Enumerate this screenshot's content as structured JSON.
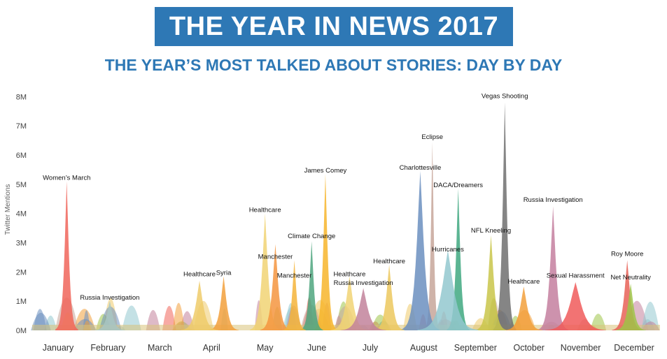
{
  "header": {
    "title": "THE YEAR IN NEWS 2017",
    "subtitle": "THE YEAR’S MOST TALKED ABOUT STORIES: DAY BY DAY"
  },
  "chart_data": {
    "type": "area",
    "title": "THE YEAR’S MOST TALKED ABOUT STORIES: DAY BY DAY",
    "ylabel": "Twitter Mentions",
    "xlabel": "",
    "ylim": [
      0,
      8000000
    ],
    "yticks": [
      {
        "value": 0,
        "label": "0M"
      },
      {
        "value": 1000000,
        "label": "1M"
      },
      {
        "value": 2000000,
        "label": "2M"
      },
      {
        "value": 3000000,
        "label": "3M"
      },
      {
        "value": 4000000,
        "label": "4M"
      },
      {
        "value": 5000000,
        "label": "5M"
      },
      {
        "value": 6000000,
        "label": "6M"
      },
      {
        "value": 7000000,
        "label": "7M"
      },
      {
        "value": 8000000,
        "label": "8M"
      }
    ],
    "x_domain": [
      "2017-01-01",
      "2017-12-31"
    ],
    "months": [
      {
        "label": "January",
        "date": "2017-01-16"
      },
      {
        "label": "February",
        "date": "2017-02-14"
      },
      {
        "label": "March",
        "date": "2017-03-16"
      },
      {
        "label": "April",
        "date": "2017-04-15"
      },
      {
        "label": "May",
        "date": "2017-05-16"
      },
      {
        "label": "June",
        "date": "2017-06-15"
      },
      {
        "label": "July",
        "date": "2017-07-16"
      },
      {
        "label": "August",
        "date": "2017-08-16"
      },
      {
        "label": "September",
        "date": "2017-09-15"
      },
      {
        "label": "October",
        "date": "2017-10-16"
      },
      {
        "label": "November",
        "date": "2017-11-15"
      },
      {
        "label": "December",
        "date": "2017-12-16"
      }
    ],
    "series": [
      {
        "label": "Women’s March",
        "date": "2017-01-21",
        "peak": 5100000,
        "width": 3,
        "color": "#f0655a",
        "label_y": 5150000
      },
      {
        "label": "Russia Investigation",
        "date": "2017-02-15",
        "peak": 1000000,
        "width": 4,
        "color": "#a8c5c3",
        "label_y": 1050000
      },
      {
        "label": "Healthcare",
        "date": "2017-04-08",
        "peak": 1700000,
        "width": 5,
        "color": "#eecb6a",
        "label_y": 1850000
      },
      {
        "label": "Syria",
        "date": "2017-04-22",
        "peak": 1850000,
        "width": 4,
        "color": "#f2a03c",
        "label_y": 1900000
      },
      {
        "label": "Healthcare",
        "date": "2017-05-16",
        "peak": 4000000,
        "width": 4,
        "color": "#f1d374",
        "label_y": 4050000
      },
      {
        "label": "Manchester",
        "date": "2017-06-02",
        "peak": 2400000,
        "width": 3,
        "color": "#f5b43a",
        "label_y": 1800000
      },
      {
        "label": "Manchester",
        "date": "2017-05-22",
        "peak": 2950000,
        "width": 4,
        "color": "#f59540",
        "label_y": 2450000
      },
      {
        "label": "Climate Change",
        "date": "2017-06-12",
        "peak": 3050000,
        "width": 3,
        "color": "#4fa67f",
        "label_y": 3150000
      },
      {
        "label": "James Comey",
        "date": "2017-06-20",
        "peak": 5350000,
        "width": 3,
        "color": "#f7b52c",
        "label_y": 5400000
      },
      {
        "label": "Healthcare",
        "date": "2017-07-04",
        "peak": 1850000,
        "width": 5,
        "color": "#f1d374",
        "label_y": 1850000
      },
      {
        "label": "Russia Investigation",
        "date": "2017-07-12",
        "peak": 1450000,
        "width": 6,
        "color": "#c2829b",
        "label_y": 1550000
      },
      {
        "label": "Healthcare",
        "date": "2017-07-27",
        "peak": 2250000,
        "width": 4,
        "color": "#ecc85e",
        "label_y": 2300000
      },
      {
        "label": "Charlottesville",
        "date": "2017-08-14",
        "peak": 5450000,
        "width": 5,
        "color": "#6b8fc0",
        "label_y": 5500000
      },
      {
        "label": "Eclipse",
        "date": "2017-08-21",
        "peak": 6450000,
        "width": 2,
        "color": "#c7a69a",
        "label_y": 6550000
      },
      {
        "label": "Hurricanes",
        "date": "2017-08-30",
        "peak": 2750000,
        "width": 8,
        "color": "#93c8cf",
        "label_y": 2700000
      },
      {
        "label": "DACA/Dreamers",
        "date": "2017-09-05",
        "peak": 4850000,
        "width": 3,
        "color": "#3fa880",
        "label_y": 4900000
      },
      {
        "label": "NFL Kneeling",
        "date": "2017-09-24",
        "peak": 3250000,
        "width": 4,
        "color": "#c9c64a",
        "label_y": 3350000
      },
      {
        "label": "Vegas Shooting",
        "date": "2017-10-02",
        "peak": 7800000,
        "width": 3,
        "color": "#707070",
        "label_y": 7950000
      },
      {
        "label": "Healthcare",
        "date": "2017-10-13",
        "peak": 1500000,
        "width": 5,
        "color": "#f2a03c",
        "label_y": 1600000
      },
      {
        "label": "Russia Investigation",
        "date": "2017-10-30",
        "peak": 4250000,
        "width": 4,
        "color": "#c47f9f",
        "label_y": 4400000
      },
      {
        "label": "Sexual Harassment",
        "date": "2017-11-12",
        "peak": 1650000,
        "width": 8,
        "color": "#f05a5a",
        "label_y": 1800000
      },
      {
        "label": "Net Neutrality",
        "date": "2017-12-14",
        "peak": 1600000,
        "width": 4,
        "color": "#9fc449",
        "label_y": 1750000
      },
      {
        "label": "Roy Moore",
        "date": "2017-12-12",
        "peak": 2400000,
        "width": 4,
        "color": "#e86257",
        "label_y": 2550000
      }
    ]
  }
}
